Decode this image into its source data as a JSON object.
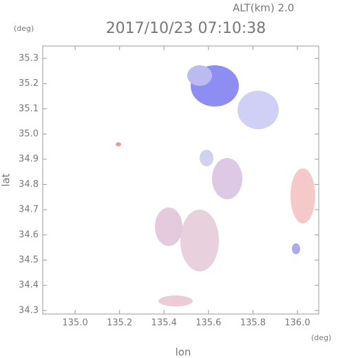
{
  "chart_data": {
    "type": "map",
    "title": "2017/10/23 07:10:38",
    "annotation": "ALT(km) 2.0",
    "y_unit": "(deg)",
    "x_unit": "(deg)",
    "x_label": "lon",
    "y_label": "lat",
    "xlim": [
      134.854,
      136.096
    ],
    "ylim": [
      34.286,
      35.349
    ],
    "xticks": [
      {
        "value": 135.0,
        "label": "135.0"
      },
      135.2,
      135.4,
      135.6,
      135.8,
      {
        "value": 136.0,
        "label": "136.0"
      }
    ],
    "yticks": [
      34.3,
      34.4,
      34.5,
      34.6,
      34.7,
      34.8,
      34.9,
      {
        "value": 35.0,
        "label": "35.0"
      },
      35.1,
      35.2,
      35.3
    ]
  }
}
